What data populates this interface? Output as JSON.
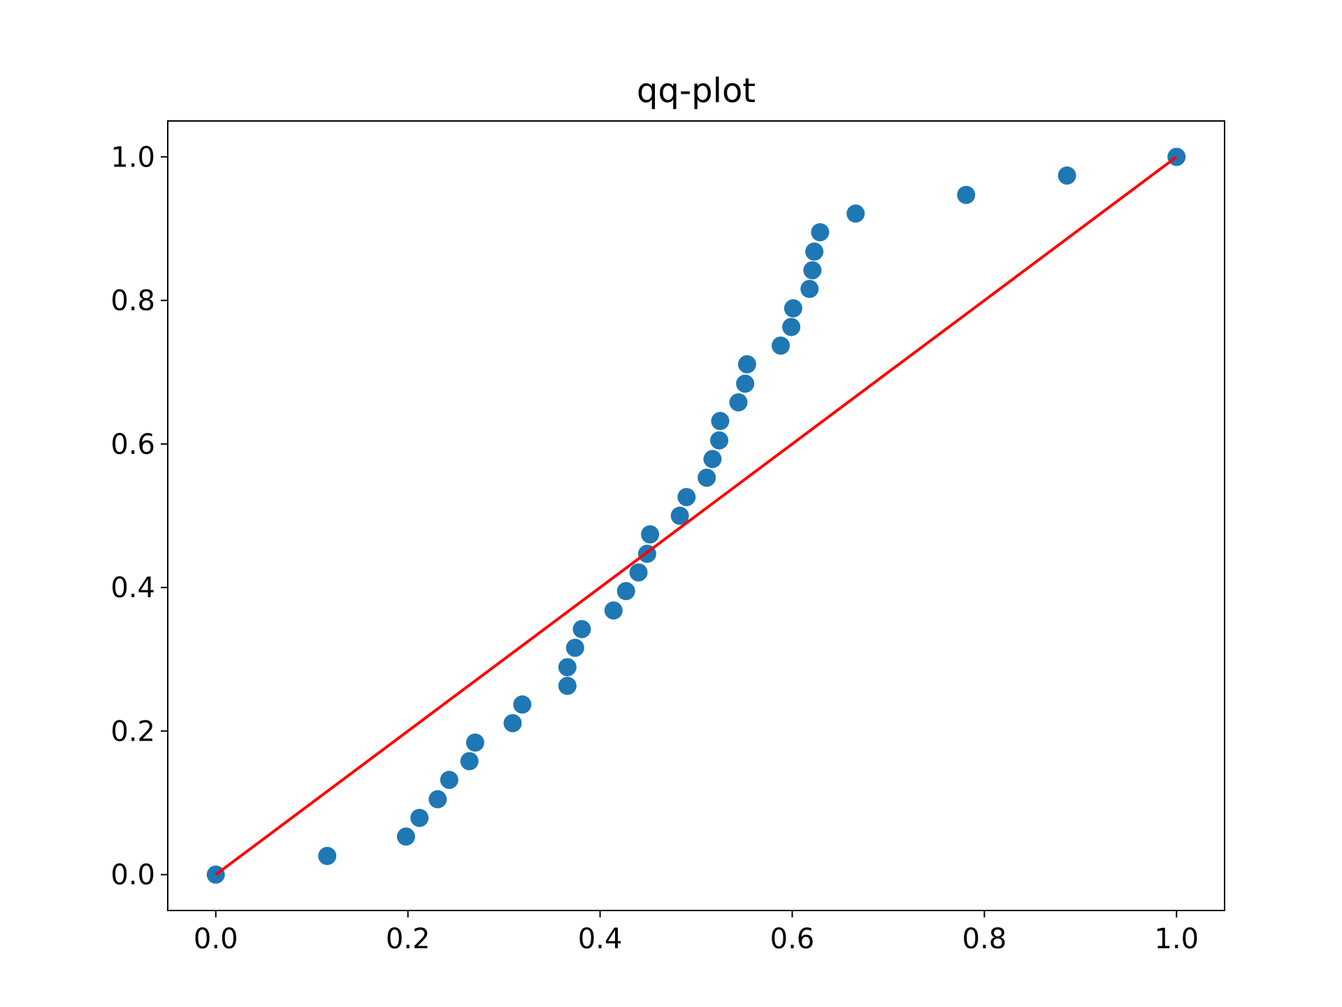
{
  "chart_data": {
    "type": "scatter",
    "title": "qq-plot",
    "xlabel": "",
    "ylabel": "",
    "xlim": [
      -0.05,
      1.05
    ],
    "ylim": [
      -0.05,
      1.05
    ],
    "xticks": [
      0.0,
      0.2,
      0.4,
      0.6,
      0.8,
      1.0
    ],
    "xtick_labels": [
      "0.0",
      "0.2",
      "0.4",
      "0.6",
      "0.8",
      "1.0"
    ],
    "yticks": [
      0.0,
      0.2,
      0.4,
      0.6,
      0.8,
      1.0
    ],
    "ytick_labels": [
      "0.0",
      "0.2",
      "0.4",
      "0.6",
      "0.8",
      "1.0"
    ],
    "grid": false,
    "legend": false,
    "series": [
      {
        "kind": "scatter",
        "color": "#1f77b4",
        "points": [
          {
            "x": 0.0,
            "y": 0.0
          },
          {
            "x": 0.116,
            "y": 0.026
          },
          {
            "x": 0.198,
            "y": 0.053
          },
          {
            "x": 0.212,
            "y": 0.079
          },
          {
            "x": 0.231,
            "y": 0.105
          },
          {
            "x": 0.243,
            "y": 0.132
          },
          {
            "x": 0.264,
            "y": 0.158
          },
          {
            "x": 0.27,
            "y": 0.184
          },
          {
            "x": 0.309,
            "y": 0.211
          },
          {
            "x": 0.319,
            "y": 0.237
          },
          {
            "x": 0.366,
            "y": 0.263
          },
          {
            "x": 0.366,
            "y": 0.289
          },
          {
            "x": 0.374,
            "y": 0.316
          },
          {
            "x": 0.381,
            "y": 0.342
          },
          {
            "x": 0.414,
            "y": 0.368
          },
          {
            "x": 0.427,
            "y": 0.395
          },
          {
            "x": 0.44,
            "y": 0.421
          },
          {
            "x": 0.449,
            "y": 0.447
          },
          {
            "x": 0.452,
            "y": 0.474
          },
          {
            "x": 0.483,
            "y": 0.5
          },
          {
            "x": 0.49,
            "y": 0.526
          },
          {
            "x": 0.511,
            "y": 0.553
          },
          {
            "x": 0.517,
            "y": 0.579
          },
          {
            "x": 0.524,
            "y": 0.605
          },
          {
            "x": 0.525,
            "y": 0.632
          },
          {
            "x": 0.544,
            "y": 0.658
          },
          {
            "x": 0.551,
            "y": 0.684
          },
          {
            "x": 0.553,
            "y": 0.711
          },
          {
            "x": 0.588,
            "y": 0.737
          },
          {
            "x": 0.599,
            "y": 0.763
          },
          {
            "x": 0.601,
            "y": 0.789
          },
          {
            "x": 0.618,
            "y": 0.816
          },
          {
            "x": 0.621,
            "y": 0.842
          },
          {
            "x": 0.623,
            "y": 0.868
          },
          {
            "x": 0.629,
            "y": 0.895
          },
          {
            "x": 0.666,
            "y": 0.921
          },
          {
            "x": 0.781,
            "y": 0.947
          },
          {
            "x": 0.886,
            "y": 0.974
          },
          {
            "x": 1.0,
            "y": 1.0
          }
        ]
      },
      {
        "kind": "line",
        "color": "#ff0000",
        "points": [
          {
            "x": 0.0,
            "y": 0.0
          },
          {
            "x": 1.0,
            "y": 1.0
          }
        ]
      }
    ]
  }
}
